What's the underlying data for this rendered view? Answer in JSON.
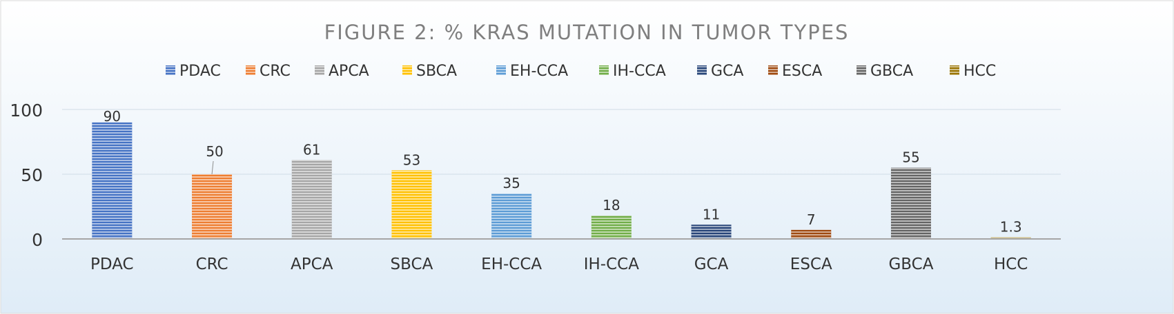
{
  "chart_data": {
    "type": "bar",
    "title": "FIGURE 2: % KRAS MUTATION IN TUMOR TYPES",
    "xlabel": "",
    "ylabel": "",
    "ylim": [
      0,
      100
    ],
    "yticks": [
      0,
      50,
      100
    ],
    "grid": true,
    "legend_position": "top",
    "categories": [
      "PDAC",
      "CRC",
      "APCA",
      "SBCA",
      "EH-CCA",
      "IH-CCA",
      "GCA",
      "ESCA",
      "GBCA",
      "HCC"
    ],
    "values": [
      90,
      50,
      61,
      53,
      35,
      18,
      11,
      7,
      55,
      1.3
    ],
    "data_labels": [
      "90",
      "50",
      "61",
      "53",
      "35",
      "18",
      "11",
      "7",
      "55",
      "1.3"
    ],
    "series": [
      {
        "name": "PDAC",
        "value": 90,
        "color": "#4472C4"
      },
      {
        "name": "CRC",
        "value": 50,
        "color": "#ED7D31"
      },
      {
        "name": "APCA",
        "value": 61,
        "color": "#A5A5A5"
      },
      {
        "name": "SBCA",
        "value": 53,
        "color": "#FFC000"
      },
      {
        "name": "EH-CCA",
        "value": 35,
        "color": "#5B9BD5"
      },
      {
        "name": "IH-CCA",
        "value": 18,
        "color": "#70AD47"
      },
      {
        "name": "GCA",
        "value": 11,
        "color": "#264478"
      },
      {
        "name": "ESCA",
        "value": 7,
        "color": "#9E480E"
      },
      {
        "name": "GBCA",
        "value": 55,
        "color": "#636363"
      },
      {
        "name": "HCC",
        "value": 1.3,
        "color": "#997300"
      }
    ]
  },
  "colors": {
    "background_top": "#ffffff",
    "background_bottom": "#dfecf7",
    "grid": "#d0dbe6",
    "axis": "#a6a6a6",
    "title": "#7f7f7f",
    "text": "#333333"
  }
}
